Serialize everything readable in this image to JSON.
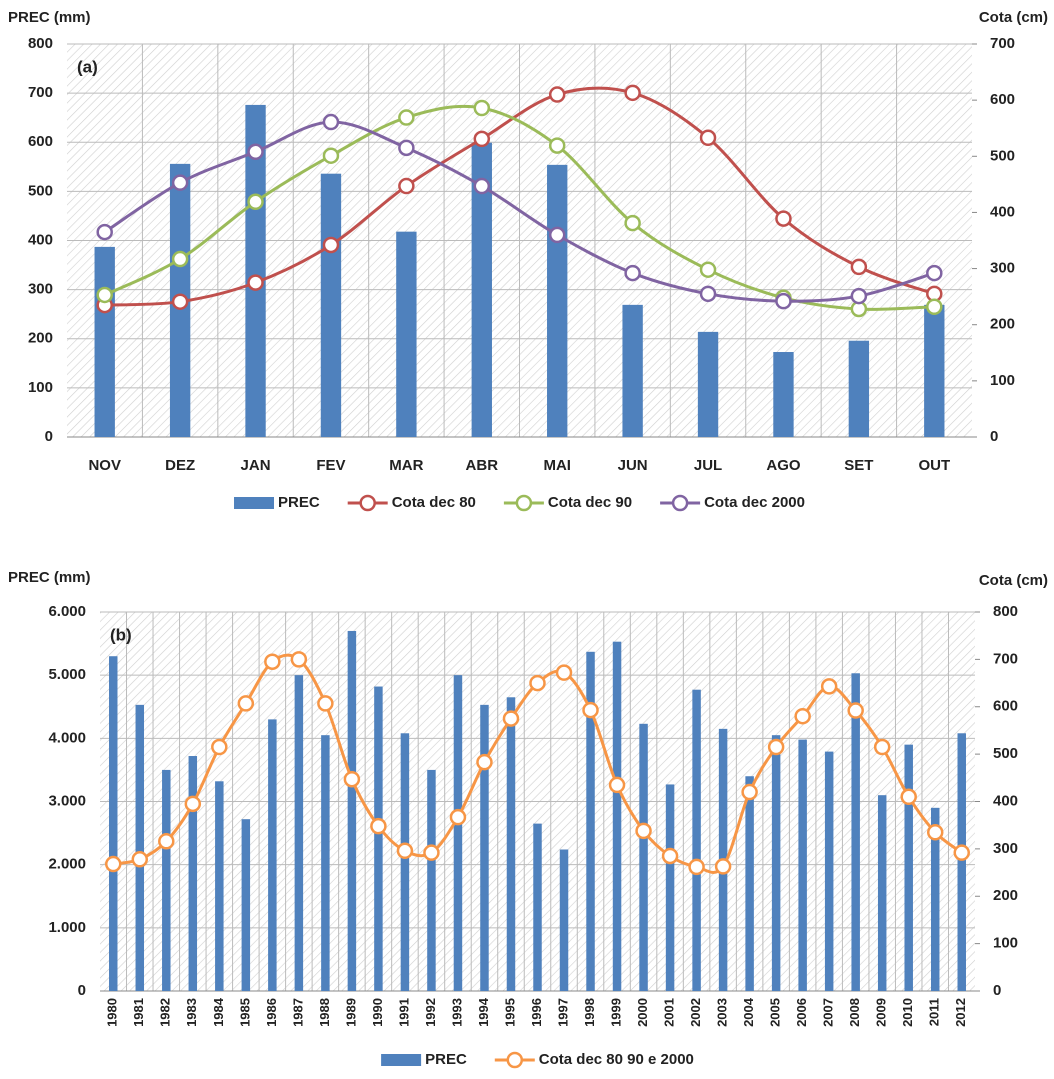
{
  "chart_data": [
    {
      "type": "bar-line",
      "panel_label": "(a)",
      "y_label": "PREC (mm)",
      "y2_label": "Cota (cm)",
      "categories": [
        "NOV",
        "DEZ",
        "JAN",
        "FEV",
        "MAR",
        "ABR",
        "MAI",
        "JUN",
        "JUL",
        "AGO",
        "SET",
        "OUT"
      ],
      "ylim": [
        0,
        800
      ],
      "yticks": [
        0,
        100,
        200,
        300,
        400,
        500,
        600,
        700,
        800
      ],
      "y2lim": [
        0,
        700
      ],
      "y2ticks": [
        0,
        100,
        200,
        300,
        400,
        500,
        600,
        700
      ],
      "grid": true,
      "series": [
        {
          "name": "PREC",
          "type": "bar",
          "color": "#4f81bd",
          "values": [
            387,
            556,
            676,
            536,
            418,
            599,
            554,
            269,
            214,
            173,
            196,
            269
          ]
        },
        {
          "name": "Cota dec 80",
          "type": "line",
          "axis": "y2",
          "color": "#c0504d",
          "values": [
            235,
            241,
            275,
            342,
            447,
            531,
            610,
            613,
            533,
            389,
            303,
            255
          ]
        },
        {
          "name": "Cota dec 90",
          "type": "line",
          "axis": "y2",
          "color": "#9bbb59",
          "values": [
            253,
            317,
            419,
            501,
            569,
            586,
            519,
            381,
            298,
            248,
            228,
            232
          ]
        },
        {
          "name": "Cota dec 2000",
          "type": "line",
          "axis": "y2",
          "color": "#8064a2",
          "values": [
            365,
            453,
            508,
            561,
            515,
            447,
            360,
            292,
            255,
            242,
            251,
            292
          ]
        }
      ]
    },
    {
      "type": "bar-line",
      "panel_label": "(b)",
      "y_label": "PREC (mm)",
      "y2_label": "Cota (cm)",
      "categories": [
        "1980",
        "1981",
        "1982",
        "1983",
        "1984",
        "1985",
        "1986",
        "1987",
        "1988",
        "1989",
        "1990",
        "1991",
        "1992",
        "1993",
        "1994",
        "1995",
        "1996",
        "1997",
        "1998",
        "1999",
        "2000",
        "2001",
        "2002",
        "2003",
        "2004",
        "2005",
        "2006",
        "2007",
        "2008",
        "2009",
        "2010",
        "2011",
        "2012"
      ],
      "ylim": [
        0,
        6000
      ],
      "yticks": [
        0,
        {
          "value": 1000,
          "label": "1.000"
        },
        {
          "value": 2000,
          "label": "2.000"
        },
        {
          "value": 3000,
          "label": "3.000"
        },
        {
          "value": 4000,
          "label": "4.000"
        },
        {
          "value": 5000,
          "label": "5.000"
        },
        {
          "value": 6000,
          "label": "6.000"
        }
      ],
      "y2lim": [
        0,
        800
      ],
      "y2ticks": [
        0,
        100,
        200,
        300,
        400,
        500,
        600,
        700,
        800
      ],
      "grid": true,
      "series": [
        {
          "name": "PREC",
          "type": "bar",
          "color": "#4f81bd",
          "values": [
            5300,
            4530,
            3500,
            3720,
            3320,
            2720,
            4300,
            5000,
            4050,
            5700,
            4820,
            4080,
            3500,
            5000,
            4530,
            4650,
            2650,
            2240,
            5370,
            5530,
            4230,
            3270,
            4770,
            4150,
            3400,
            4050,
            3980,
            3790,
            5030,
            3100,
            3900,
            2900,
            4080
          ]
        },
        {
          "name": "Cota dec 80 90 e 2000",
          "type": "line",
          "axis": "y2",
          "color": "#f79646",
          "values": [
            268,
            278,
            316,
            395,
            515,
            607,
            695,
            700,
            607,
            447,
            348,
            296,
            292,
            367,
            483,
            575,
            650,
            672,
            593,
            435,
            338,
            285,
            262,
            263,
            420,
            515,
            580,
            643,
            592,
            515,
            410,
            335,
            292
          ]
        }
      ]
    }
  ]
}
